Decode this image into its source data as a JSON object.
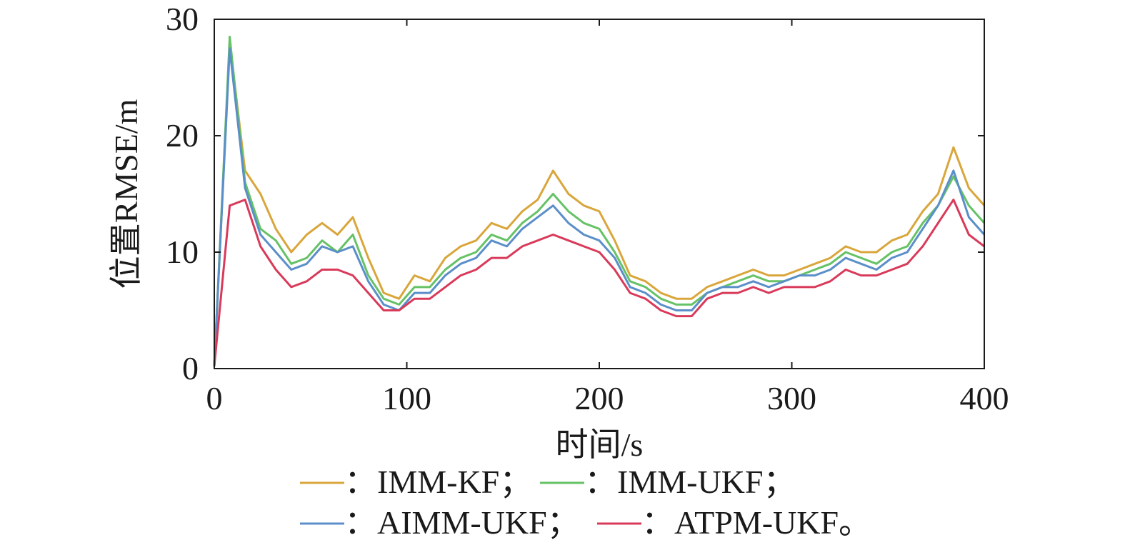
{
  "chart_data": {
    "type": "line",
    "title": "",
    "xlabel": "时间/s",
    "ylabel": "位置RMSE/m",
    "xlim": [
      0,
      400
    ],
    "ylim": [
      0,
      30
    ],
    "xticks": [
      0,
      100,
      200,
      300,
      400
    ],
    "yticks": [
      0,
      10,
      20,
      30
    ],
    "grid": false,
    "legend_position": "bottom",
    "legend": {
      "row1": [
        {
          "series": 0,
          "text": "：IMM-KF；"
        },
        {
          "series": 1,
          "text": "：IMM-UKF；"
        }
      ],
      "row2": [
        {
          "series": 2,
          "text": "：AIMM-UKF；"
        },
        {
          "series": 3,
          "text": "：ATPM-UKF。"
        }
      ]
    },
    "x": [
      0,
      8,
      16,
      24,
      32,
      40,
      48,
      56,
      64,
      72,
      80,
      88,
      96,
      104,
      112,
      120,
      128,
      136,
      144,
      152,
      160,
      168,
      176,
      184,
      192,
      200,
      208,
      216,
      224,
      232,
      240,
      248,
      256,
      264,
      272,
      280,
      288,
      296,
      304,
      312,
      320,
      328,
      336,
      344,
      352,
      360,
      368,
      376,
      384,
      392,
      400
    ],
    "series": [
      {
        "name": "IMM-KF",
        "color": "#d9a63b",
        "values": [
          0.2,
          28.0,
          17.0,
          15.0,
          12.0,
          10.0,
          11.5,
          12.5,
          11.5,
          13.0,
          9.5,
          6.5,
          6.0,
          8.0,
          7.5,
          9.5,
          10.5,
          11.0,
          12.5,
          12.0,
          13.5,
          14.5,
          17.0,
          15.0,
          14.0,
          13.5,
          11.0,
          8.0,
          7.5,
          6.5,
          6.0,
          6.0,
          7.0,
          7.5,
          8.0,
          8.5,
          8.0,
          8.0,
          8.5,
          9.0,
          9.5,
          10.5,
          10.0,
          10.0,
          11.0,
          11.5,
          13.5,
          15.0,
          19.0,
          15.5,
          14.0
        ]
      },
      {
        "name": "IMM-UKF",
        "color": "#66c266",
        "values": [
          0.2,
          28.5,
          16.0,
          12.0,
          11.0,
          9.0,
          9.5,
          11.0,
          10.0,
          11.5,
          8.0,
          6.0,
          5.5,
          7.0,
          7.0,
          8.5,
          9.5,
          10.0,
          11.5,
          11.0,
          12.5,
          13.5,
          15.0,
          13.5,
          12.5,
          12.0,
          10.0,
          7.5,
          7.0,
          6.0,
          5.5,
          5.5,
          6.5,
          7.0,
          7.5,
          8.0,
          7.5,
          7.5,
          8.0,
          8.5,
          9.0,
          10.0,
          9.5,
          9.0,
          10.0,
          10.5,
          12.5,
          14.0,
          16.5,
          14.0,
          12.5
        ]
      },
      {
        "name": "AIMM-UKF",
        "color": "#5b8fc9",
        "values": [
          0.2,
          27.5,
          15.5,
          11.5,
          10.0,
          8.5,
          9.0,
          10.5,
          10.0,
          10.5,
          7.5,
          5.5,
          5.0,
          6.5,
          6.5,
          8.0,
          9.0,
          9.5,
          11.0,
          10.5,
          12.0,
          13.0,
          14.0,
          12.5,
          11.5,
          11.0,
          9.5,
          7.0,
          6.5,
          5.5,
          5.0,
          5.0,
          6.5,
          7.0,
          7.0,
          7.5,
          7.0,
          7.5,
          8.0,
          8.0,
          8.5,
          9.5,
          9.0,
          8.5,
          9.5,
          10.0,
          12.0,
          14.0,
          17.0,
          13.0,
          11.5
        ]
      },
      {
        "name": "ATPM-UKF",
        "color": "#d93a5a",
        "values": [
          0.2,
          14.0,
          14.5,
          10.5,
          8.5,
          7.0,
          7.5,
          8.5,
          8.5,
          8.0,
          6.5,
          5.0,
          5.0,
          6.0,
          6.0,
          7.0,
          8.0,
          8.5,
          9.5,
          9.5,
          10.5,
          11.0,
          11.5,
          11.0,
          10.5,
          10.0,
          8.5,
          6.5,
          6.0,
          5.0,
          4.5,
          4.5,
          6.0,
          6.5,
          6.5,
          7.0,
          6.5,
          7.0,
          7.0,
          7.0,
          7.5,
          8.5,
          8.0,
          8.0,
          8.5,
          9.0,
          10.5,
          12.5,
          14.5,
          11.5,
          10.5
        ]
      }
    ]
  }
}
